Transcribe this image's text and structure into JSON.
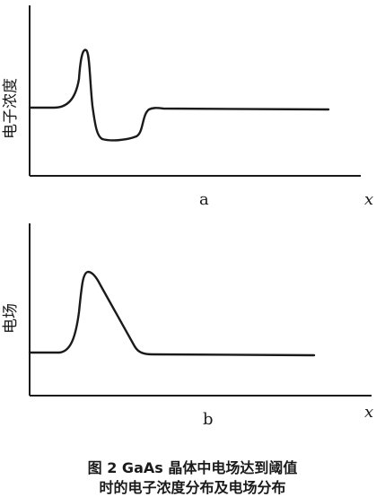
{
  "figure": {
    "panel_a": {
      "y_axis_label": "电子浓度",
      "x_axis_label": "x",
      "panel_label": "a",
      "curve": "electron-concentration-profile"
    },
    "panel_b": {
      "y_axis_label": "电场",
      "x_axis_label": "x",
      "panel_label": "b",
      "curve": "electric-field-profile"
    },
    "caption": {
      "line1": "图 2   GaAs 晶体中电场达到阈值",
      "line2": "时的电子浓度分布及电场分布"
    }
  }
}
